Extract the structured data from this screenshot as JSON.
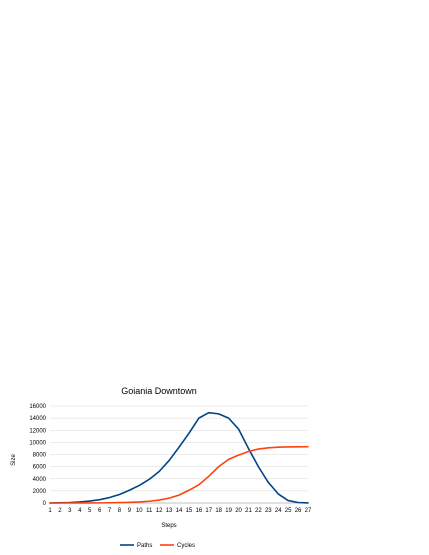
{
  "chart_data": {
    "type": "line",
    "title": "Goiania Downtown",
    "xlabel": "Steps",
    "ylabel": "Size",
    "x": [
      1,
      2,
      3,
      4,
      5,
      6,
      7,
      8,
      9,
      10,
      11,
      12,
      13,
      14,
      15,
      16,
      17,
      18,
      19,
      20,
      21,
      22,
      23,
      24,
      25,
      26,
      27
    ],
    "ylim": [
      0,
      16000
    ],
    "yticks": [
      0,
      2000,
      4000,
      6000,
      8000,
      10000,
      12000,
      14000,
      16000
    ],
    "grid": true,
    "legend": "bottom",
    "series": [
      {
        "name": "Paths",
        "color": "#004586",
        "values": [
          10,
          30,
          80,
          170,
          320,
          550,
          900,
          1400,
          2100,
          2900,
          3900,
          5200,
          7000,
          9200,
          11500,
          14000,
          14900,
          14700,
          14000,
          12200,
          9000,
          6000,
          3400,
          1500,
          400,
          80,
          10
        ]
      },
      {
        "name": "Cycles",
        "color": "#ff420e",
        "values": [
          0,
          0,
          0,
          5,
          10,
          20,
          40,
          70,
          110,
          180,
          290,
          480,
          800,
          1300,
          2100,
          3000,
          4400,
          6000,
          7200,
          7900,
          8500,
          8900,
          9100,
          9200,
          9250,
          9270,
          9280
        ]
      }
    ]
  }
}
